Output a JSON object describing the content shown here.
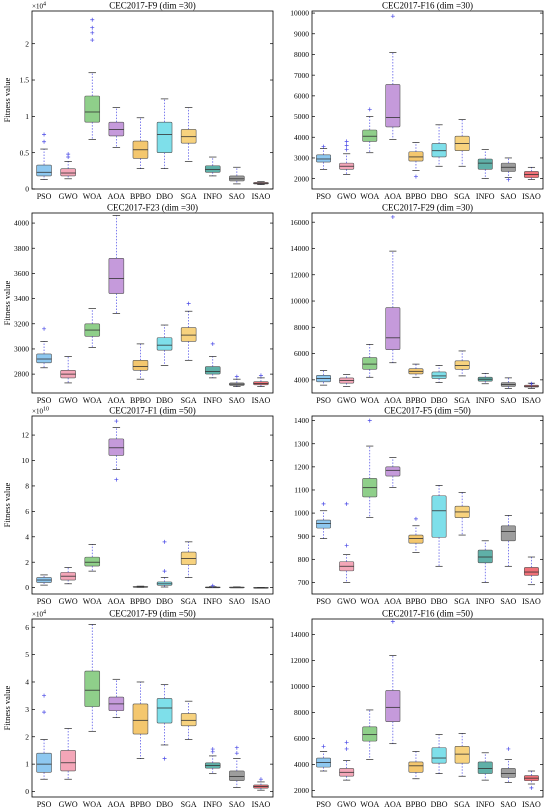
{
  "chart_data": [
    {
      "type": "boxplot",
      "title": "CEC2017-F9 (dim =30)",
      "ylabel": "Fitness value",
      "y_exponent": "4",
      "categories": [
        "PSO",
        "GWO",
        "WOA",
        "AOA",
        "BPBO",
        "DBO",
        "SGA",
        "INFO",
        "SAO",
        "ISAO"
      ],
      "ylim": [
        0,
        2.45
      ],
      "yticks": [
        0,
        0.5,
        1,
        1.5,
        2
      ],
      "ytick_labels": [
        "0",
        "0.5",
        "1",
        "1.5",
        "2"
      ],
      "boxes": [
        {
          "whislo": 0.13,
          "q1": 0.18,
          "med": 0.23,
          "q3": 0.33,
          "whishi": 0.55,
          "fliers": [
            0.65,
            0.75
          ]
        },
        {
          "whislo": 0.14,
          "q1": 0.18,
          "med": 0.22,
          "q3": 0.28,
          "whishi": 0.38,
          "fliers": [
            0.44,
            0.48
          ]
        },
        {
          "whislo": 0.68,
          "q1": 0.92,
          "med": 1.06,
          "q3": 1.28,
          "whishi": 1.6,
          "fliers": [
            2.05,
            2.15,
            2.22,
            2.33
          ]
        },
        {
          "whislo": 0.57,
          "q1": 0.73,
          "med": 0.82,
          "q3": 0.92,
          "whishi": 1.12,
          "fliers": []
        },
        {
          "whislo": 0.28,
          "q1": 0.42,
          "med": 0.54,
          "q3": 0.66,
          "whishi": 0.98,
          "fliers": []
        },
        {
          "whislo": 0.28,
          "q1": 0.5,
          "med": 0.75,
          "q3": 0.92,
          "whishi": 1.24,
          "fliers": []
        },
        {
          "whislo": 0.38,
          "q1": 0.63,
          "med": 0.72,
          "q3": 0.82,
          "whishi": 1.12,
          "fliers": []
        },
        {
          "whislo": 0.18,
          "q1": 0.23,
          "med": 0.27,
          "q3": 0.32,
          "whishi": 0.44,
          "fliers": []
        },
        {
          "whislo": 0.07,
          "q1": 0.11,
          "med": 0.14,
          "q3": 0.18,
          "whishi": 0.3,
          "fliers": []
        },
        {
          "whislo": 0.06,
          "q1": 0.07,
          "med": 0.08,
          "q3": 0.09,
          "whishi": 0.1,
          "fliers": []
        }
      ]
    },
    {
      "type": "boxplot",
      "title": "CEC2017-F16 (dim =30)",
      "ylabel": "",
      "y_exponent": "",
      "categories": [
        "PSO",
        "GWO",
        "WOA",
        "AOA",
        "BPBO",
        "DBO",
        "SGA",
        "INFO",
        "SAO",
        "ISAO"
      ],
      "ylim": [
        1500,
        10100
      ],
      "yticks": [
        2000,
        3000,
        4000,
        5000,
        6000,
        7000,
        8000,
        9000,
        10000
      ],
      "ytick_labels": [
        "2000",
        "3000",
        "4000",
        "5000",
        "6000",
        "7000",
        "8000",
        "9000",
        "10000"
      ],
      "boxes": [
        {
          "whislo": 2450,
          "q1": 2800,
          "med": 2950,
          "q3": 3150,
          "whishi": 3450,
          "fliers": [
            3550
          ]
        },
        {
          "whislo": 2200,
          "q1": 2450,
          "med": 2600,
          "q3": 2750,
          "whishi": 3200,
          "fliers": [
            3400,
            3600,
            3800
          ]
        },
        {
          "whislo": 3250,
          "q1": 3800,
          "med": 4050,
          "q3": 4350,
          "whishi": 5000,
          "fliers": [
            5350
          ]
        },
        {
          "whislo": 3900,
          "q1": 4500,
          "med": 4950,
          "q3": 6550,
          "whishi": 8100,
          "fliers": [
            9850
          ]
        },
        {
          "whislo": 2400,
          "q1": 2850,
          "med": 3050,
          "q3": 3300,
          "whishi": 3750,
          "fliers": [
            2100
          ]
        },
        {
          "whislo": 2600,
          "q1": 3050,
          "med": 3350,
          "q3": 3700,
          "whishi": 4600,
          "fliers": []
        },
        {
          "whislo": 2600,
          "q1": 3350,
          "med": 3700,
          "q3": 4050,
          "whishi": 4850,
          "fliers": []
        },
        {
          "whislo": 2000,
          "q1": 2450,
          "med": 2750,
          "q3": 2950,
          "whishi": 3400,
          "fliers": []
        },
        {
          "whislo": 2050,
          "q1": 2350,
          "med": 2550,
          "q3": 2750,
          "whishi": 3000,
          "fliers": [
            1950
          ]
        },
        {
          "whislo": 1950,
          "q1": 2050,
          "med": 2200,
          "q3": 2350,
          "whishi": 2550,
          "fliers": []
        }
      ]
    },
    {
      "type": "boxplot",
      "title": "CEC2017-F23 (dim =30)",
      "ylabel": "Fitness value",
      "y_exponent": "",
      "categories": [
        "PSO",
        "GWO",
        "WOA",
        "AOA",
        "BPBO",
        "DBO",
        "SGA",
        "INFO",
        "SAO",
        "ISAO"
      ],
      "ylim": [
        2650,
        4080
      ],
      "yticks": [
        2800,
        3000,
        3200,
        3400,
        3600,
        3800,
        4000
      ],
      "ytick_labels": [
        "2800",
        "3000",
        "3200",
        "3400",
        "3600",
        "3800",
        "4000"
      ],
      "boxes": [
        {
          "whislo": 2850,
          "q1": 2890,
          "med": 2920,
          "q3": 2960,
          "whishi": 3060,
          "fliers": [
            3160
          ]
        },
        {
          "whislo": 2730,
          "q1": 2770,
          "med": 2800,
          "q3": 2830,
          "whishi": 2940,
          "fliers": []
        },
        {
          "whislo": 3010,
          "q1": 3100,
          "med": 3150,
          "q3": 3200,
          "whishi": 3320,
          "fliers": []
        },
        {
          "whislo": 3280,
          "q1": 3440,
          "med": 3560,
          "q3": 3720,
          "whishi": 4060,
          "fliers": []
        },
        {
          "whislo": 2760,
          "q1": 2830,
          "med": 2860,
          "q3": 2910,
          "whishi": 3040,
          "fliers": []
        },
        {
          "whislo": 2870,
          "q1": 2990,
          "med": 3030,
          "q3": 3090,
          "whishi": 3190,
          "fliers": []
        },
        {
          "whislo": 2910,
          "q1": 3060,
          "med": 3110,
          "q3": 3170,
          "whishi": 3300,
          "fliers": [
            3360
          ]
        },
        {
          "whislo": 2770,
          "q1": 2800,
          "med": 2820,
          "q3": 2860,
          "whishi": 2940,
          "fliers": [
            3040
          ]
        },
        {
          "whislo": 2700,
          "q1": 2710,
          "med": 2720,
          "q3": 2730,
          "whishi": 2760,
          "fliers": [
            2780
          ]
        },
        {
          "whislo": 2700,
          "q1": 2715,
          "med": 2725,
          "q3": 2740,
          "whishi": 2770,
          "fliers": [
            2790
          ]
        }
      ]
    },
    {
      "type": "boxplot",
      "title": "CEC2017-F29 (dim =30)",
      "ylabel": "",
      "y_exponent": "",
      "categories": [
        "PSO",
        "GWO",
        "WOA",
        "AOA",
        "BPBO",
        "DBO",
        "SGA",
        "INFO",
        "SAO",
        "ISAO"
      ],
      "ylim": [
        3000,
        16700
      ],
      "yticks": [
        4000,
        6000,
        8000,
        10000,
        12000,
        14000,
        16000
      ],
      "ytick_labels": [
        "4000",
        "6000",
        "8000",
        "10000",
        "12000",
        "14000",
        "16000"
      ],
      "boxes": [
        {
          "whislo": 3600,
          "q1": 3850,
          "med": 4100,
          "q3": 4350,
          "whishi": 4700,
          "fliers": []
        },
        {
          "whislo": 3500,
          "q1": 3750,
          "med": 3950,
          "q3": 4150,
          "whishi": 4400,
          "fliers": []
        },
        {
          "whislo": 4200,
          "q1": 4800,
          "med": 5200,
          "q3": 5700,
          "whishi": 6700,
          "fliers": []
        },
        {
          "whislo": 5300,
          "q1": 6300,
          "med": 7200,
          "q3": 9500,
          "whishi": 13800,
          "fliers": [
            16400
          ]
        },
        {
          "whislo": 4200,
          "q1": 4450,
          "med": 4650,
          "q3": 4850,
          "whishi": 5200,
          "fliers": []
        },
        {
          "whislo": 3800,
          "q1": 4100,
          "med": 4300,
          "q3": 4600,
          "whishi": 5100,
          "fliers": []
        },
        {
          "whislo": 4300,
          "q1": 4800,
          "med": 5100,
          "q3": 5450,
          "whishi": 6200,
          "fliers": []
        },
        {
          "whislo": 3700,
          "q1": 3900,
          "med": 4050,
          "q3": 4200,
          "whishi": 4500,
          "fliers": []
        },
        {
          "whislo": 3350,
          "q1": 3500,
          "med": 3650,
          "q3": 3800,
          "whishi": 4150,
          "fliers": []
        },
        {
          "whislo": 3350,
          "q1": 3450,
          "med": 3520,
          "q3": 3600,
          "whishi": 3750,
          "fliers": [
            3700
          ]
        }
      ]
    },
    {
      "type": "boxplot",
      "title": "CEC2017-F1 (dim =50)",
      "ylabel": "Fitness value",
      "y_exponent": "10",
      "categories": [
        "PSO",
        "GWO",
        "WOA",
        "AOA",
        "BPBO",
        "DBO",
        "SGA",
        "INFO",
        "SAO",
        "ISAO"
      ],
      "ylim": [
        -0.5,
        13.5
      ],
      "yticks": [
        0,
        2,
        4,
        6,
        8,
        10,
        12
      ],
      "ytick_labels": [
        "0",
        "2",
        "4",
        "6",
        "8",
        "10",
        "12"
      ],
      "boxes": [
        {
          "whislo": 0.2,
          "q1": 0.4,
          "med": 0.6,
          "q3": 0.8,
          "whishi": 1.0,
          "fliers": []
        },
        {
          "whislo": 0.3,
          "q1": 0.6,
          "med": 0.9,
          "q3": 1.2,
          "whishi": 1.6,
          "fliers": []
        },
        {
          "whislo": 1.3,
          "q1": 1.7,
          "med": 2.0,
          "q3": 2.4,
          "whishi": 3.4,
          "fliers": []
        },
        {
          "whislo": 9.3,
          "q1": 10.4,
          "med": 11.0,
          "q3": 11.7,
          "whishi": 12.6,
          "fliers": [
            8.5,
            13.1
          ]
        },
        {
          "whislo": 0.02,
          "q1": 0.04,
          "med": 0.06,
          "q3": 0.09,
          "whishi": 0.12,
          "fliers": []
        },
        {
          "whislo": 0.05,
          "q1": 0.18,
          "med": 0.3,
          "q3": 0.45,
          "whishi": 0.8,
          "fliers": [
            1.3,
            3.6
          ]
        },
        {
          "whislo": 0.8,
          "q1": 1.8,
          "med": 2.3,
          "q3": 2.8,
          "whishi": 3.6,
          "fliers": []
        },
        {
          "whislo": 0.01,
          "q1": 0.02,
          "med": 0.03,
          "q3": 0.05,
          "whishi": 0.08,
          "fliers": [
            0.15
          ]
        },
        {
          "whislo": 0.01,
          "q1": 0.02,
          "med": 0.03,
          "q3": 0.04,
          "whishi": 0.06,
          "fliers": []
        },
        {
          "whislo": 0.0,
          "q1": 0.0,
          "med": 0.0,
          "q3": 0.01,
          "whishi": 0.02,
          "fliers": []
        }
      ]
    },
    {
      "type": "boxplot",
      "title": "CEC2017-F5 (dim =50)",
      "ylabel": "",
      "y_exponent": "",
      "categories": [
        "PSO",
        "GWO",
        "WOA",
        "AOA",
        "BPBO",
        "DBO",
        "SGA",
        "INFO",
        "SAO",
        "ISAO"
      ],
      "ylim": [
        650,
        1420
      ],
      "yticks": [
        700,
        800,
        900,
        1000,
        1100,
        1200,
        1300,
        1400
      ],
      "ytick_labels": [
        "700",
        "800",
        "900",
        "1000",
        "1100",
        "1200",
        "1300",
        "1400"
      ],
      "boxes": [
        {
          "whislo": 890,
          "q1": 935,
          "med": 955,
          "q3": 970,
          "whishi": 1010,
          "fliers": [
            1040
          ]
        },
        {
          "whislo": 700,
          "q1": 750,
          "med": 770,
          "q3": 790,
          "whishi": 820,
          "fliers": [
            860,
            1040
          ]
        },
        {
          "whislo": 980,
          "q1": 1070,
          "med": 1110,
          "q3": 1150,
          "whishi": 1290,
          "fliers": [
            1400
          ]
        },
        {
          "whislo": 1110,
          "q1": 1160,
          "med": 1185,
          "q3": 1200,
          "whishi": 1240,
          "fliers": []
        },
        {
          "whislo": 830,
          "q1": 870,
          "med": 890,
          "q3": 905,
          "whishi": 945,
          "fliers": [
            975
          ]
        },
        {
          "whislo": 770,
          "q1": 895,
          "med": 1010,
          "q3": 1075,
          "whishi": 1120,
          "fliers": []
        },
        {
          "whislo": 905,
          "q1": 980,
          "med": 1005,
          "q3": 1030,
          "whishi": 1090,
          "fliers": []
        },
        {
          "whislo": 700,
          "q1": 785,
          "med": 810,
          "q3": 840,
          "whishi": 880,
          "fliers": []
        },
        {
          "whislo": 770,
          "q1": 880,
          "med": 920,
          "q3": 945,
          "whishi": 990,
          "fliers": []
        },
        {
          "whislo": 690,
          "q1": 730,
          "med": 745,
          "q3": 765,
          "whishi": 810,
          "fliers": []
        }
      ]
    },
    {
      "type": "boxplot",
      "title": "CEC2017-F9 (dim =50)",
      "ylabel": "Fitness value",
      "y_exponent": "4",
      "categories": [
        "PSO",
        "GWO",
        "WOA",
        "AOA",
        "BPBO",
        "DBO",
        "SGA",
        "INFO",
        "SAO",
        "ISAO"
      ],
      "ylim": [
        -0.2,
        6.3
      ],
      "yticks": [
        0,
        1,
        2,
        3,
        4,
        5,
        6
      ],
      "ytick_labels": [
        "0",
        "1",
        "2",
        "3",
        "4",
        "5",
        "6"
      ],
      "boxes": [
        {
          "whislo": 0.45,
          "q1": 0.7,
          "med": 1.0,
          "q3": 1.4,
          "whishi": 1.9,
          "fliers": [
            2.9,
            3.5
          ]
        },
        {
          "whislo": 0.45,
          "q1": 0.75,
          "med": 1.05,
          "q3": 1.5,
          "whishi": 2.3,
          "fliers": []
        },
        {
          "whislo": 2.2,
          "q1": 3.1,
          "med": 3.7,
          "q3": 4.4,
          "whishi": 6.1,
          "fliers": []
        },
        {
          "whislo": 2.7,
          "q1": 2.95,
          "med": 3.2,
          "q3": 3.45,
          "whishi": 4.1,
          "fliers": []
        },
        {
          "whislo": 1.2,
          "q1": 2.1,
          "med": 2.6,
          "q3": 3.2,
          "whishi": 4.0,
          "fliers": []
        },
        {
          "whislo": 1.7,
          "q1": 2.5,
          "med": 3.05,
          "q3": 3.4,
          "whishi": 3.9,
          "fliers": [
            1.2
          ]
        },
        {
          "whislo": 1.9,
          "q1": 2.4,
          "med": 2.6,
          "q3": 2.85,
          "whishi": 3.3,
          "fliers": []
        },
        {
          "whislo": 0.65,
          "q1": 0.85,
          "med": 0.95,
          "q3": 1.05,
          "whishi": 1.3,
          "fliers": [
            1.45,
            1.55
          ]
        },
        {
          "whislo": 0.15,
          "q1": 0.4,
          "med": 0.55,
          "q3": 0.75,
          "whishi": 1.2,
          "fliers": [
            1.4,
            1.6
          ]
        },
        {
          "whislo": 0.05,
          "q1": 0.12,
          "med": 0.18,
          "q3": 0.24,
          "whishi": 0.35,
          "fliers": [
            0.45
          ]
        }
      ]
    },
    {
      "type": "boxplot",
      "title": "CEC2017-F16 (dim =50)",
      "ylabel": "",
      "y_exponent": "",
      "categories": [
        "PSO",
        "GWO",
        "WOA",
        "AOA",
        "BPBO",
        "DBO",
        "SGA",
        "INFO",
        "SAO",
        "ISAO"
      ],
      "ylim": [
        1500,
        15200
      ],
      "yticks": [
        2000,
        4000,
        6000,
        8000,
        10000,
        12000,
        14000
      ],
      "ytick_labels": [
        "2000",
        "4000",
        "6000",
        "8000",
        "10000",
        "12000",
        "14000"
      ],
      "boxes": [
        {
          "whislo": 3500,
          "q1": 3800,
          "med": 4150,
          "q3": 4500,
          "whishi": 5000,
          "fliers": [
            5400
          ]
        },
        {
          "whislo": 2800,
          "q1": 3100,
          "med": 3400,
          "q3": 3700,
          "whishi": 4300,
          "fliers": [
            5200,
            5700
          ]
        },
        {
          "whislo": 4400,
          "q1": 5800,
          "med": 6300,
          "q3": 6900,
          "whishi": 8200,
          "fliers": []
        },
        {
          "whislo": 5600,
          "q1": 7300,
          "med": 8400,
          "q3": 9700,
          "whishi": 12400,
          "fliers": [
            15000
          ]
        },
        {
          "whislo": 2900,
          "q1": 3400,
          "med": 3900,
          "q3": 4200,
          "whishi": 5000,
          "fliers": []
        },
        {
          "whislo": 3300,
          "q1": 4100,
          "med": 4500,
          "q3": 5300,
          "whishi": 6300,
          "fliers": []
        },
        {
          "whislo": 3100,
          "q1": 4100,
          "med": 4800,
          "q3": 5400,
          "whishi": 6400,
          "fliers": []
        },
        {
          "whislo": 2800,
          "q1": 3300,
          "med": 3700,
          "q3": 4200,
          "whishi": 4900,
          "fliers": []
        },
        {
          "whislo": 2600,
          "q1": 3000,
          "med": 3300,
          "q3": 3700,
          "whishi": 4400,
          "fliers": [
            5200
          ]
        },
        {
          "whislo": 2500,
          "q1": 2750,
          "med": 2950,
          "q3": 3150,
          "whishi": 3500,
          "fliers": [
            2200
          ]
        }
      ]
    }
  ],
  "box_colors": [
    "#8ec8f0",
    "#f4a6b8",
    "#8fcf8a",
    "#c59adb",
    "#f4c76e",
    "#7edfea",
    "#f7d27e",
    "#5fb0a8",
    "#9d9d9d",
    "#f07078"
  ],
  "outlier_color": "#4a4ae6",
  "whisker_color": "#4a4ae6"
}
